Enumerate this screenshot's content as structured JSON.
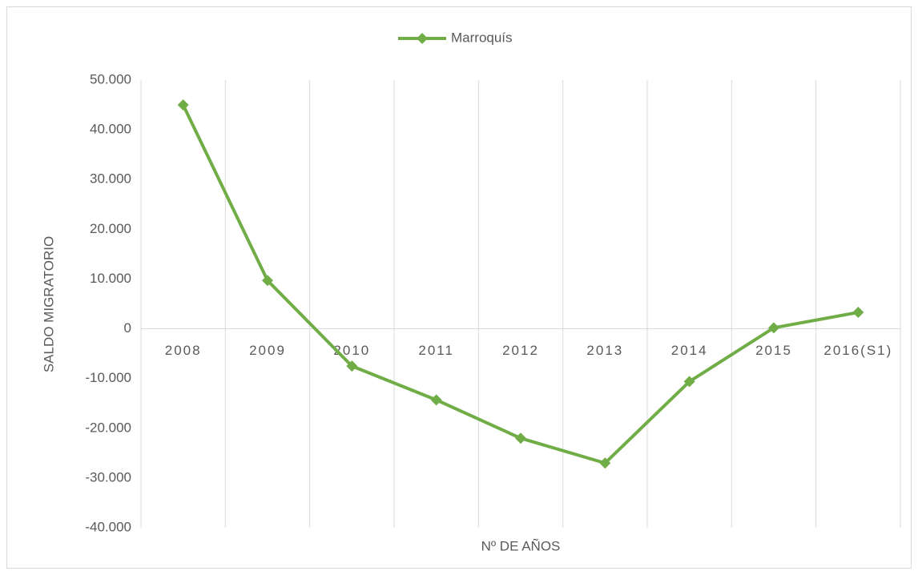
{
  "chart_data": {
    "type": "line",
    "categories": [
      "2008",
      "2009",
      "2010",
      "2011",
      "2012",
      "2013",
      "2014",
      "2015",
      "2016(S1)"
    ],
    "series": [
      {
        "name": "Marroquís",
        "color": "#70ad47",
        "values": [
          45000,
          9700,
          -7500,
          -14300,
          -22000,
          -27000,
          -10600,
          200,
          3300
        ]
      }
    ],
    "ylim": [
      -40000,
      50000
    ],
    "yticks": [
      {
        "value": -40000,
        "label": "-40.000"
      },
      {
        "value": -30000,
        "label": "-30.000"
      },
      {
        "value": -20000,
        "label": "-20.000"
      },
      {
        "value": -10000,
        "label": "-10.000"
      },
      0,
      {
        "value": 10000,
        "label": "10.000"
      },
      {
        "value": 20000,
        "label": "20.000"
      },
      {
        "value": 30000,
        "label": "30.000"
      },
      {
        "value": 40000,
        "label": "40.000"
      },
      {
        "value": 50000,
        "label": "50.000"
      }
    ],
    "y_label": "SALDO MIGRATORIO",
    "x_label": "Nº DE AÑOS",
    "legend": "top"
  }
}
